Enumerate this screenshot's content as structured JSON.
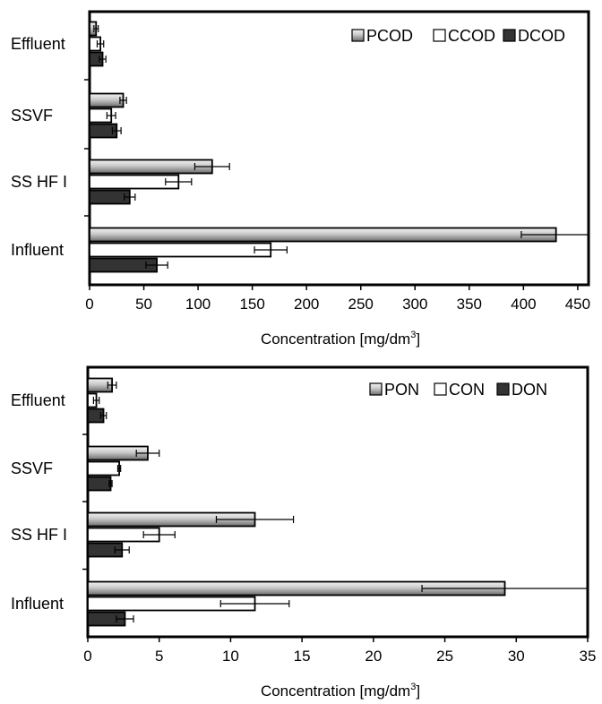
{
  "chart_data": [
    {
      "type": "bar",
      "orientation": "horizontal",
      "categories": [
        "Effluent",
        "SSVF",
        "SS HF I",
        "Influent"
      ],
      "series": [
        {
          "name": "PCOD",
          "values": [
            6,
            31,
            113,
            430
          ],
          "errors": [
            2,
            3,
            16,
            32
          ]
        },
        {
          "name": "CCOD",
          "values": [
            10,
            20,
            82,
            167
          ],
          "errors": [
            3,
            4,
            12,
            15
          ]
        },
        {
          "name": "DCOD",
          "values": [
            12,
            25,
            37,
            62
          ],
          "errors": [
            3,
            4,
            5,
            10
          ]
        }
      ],
      "xlabel": "Concentration [mg/dm",
      "xlabel_superscript": "3",
      "xlabel_suffix": "]",
      "xlim": [
        0,
        460
      ],
      "xticks": [
        0,
        50,
        100,
        150,
        200,
        250,
        300,
        350,
        400,
        450
      ],
      "grid": false,
      "legend_position": "top-right",
      "colors": {
        "PCOD": "gradient-gray",
        "CCOD": "#ffffff",
        "DCOD": "#333333"
      }
    },
    {
      "type": "bar",
      "orientation": "horizontal",
      "categories": [
        "Effluent",
        "SSVF",
        "SS HF I",
        "Influent"
      ],
      "series": [
        {
          "name": "PON",
          "values": [
            1.7,
            4.2,
            11.7,
            29.2
          ],
          "errors": [
            0.3,
            0.8,
            2.7,
            5.8
          ]
        },
        {
          "name": "CON",
          "values": [
            0.6,
            2.2,
            5.0,
            11.7
          ],
          "errors": [
            0.2,
            0.1,
            1.1,
            2.4
          ]
        },
        {
          "name": "DON",
          "values": [
            1.1,
            1.6,
            2.4,
            2.6
          ],
          "errors": [
            0.2,
            0.1,
            0.5,
            0.6
          ]
        }
      ],
      "xlabel": "Concentration [mg/dm",
      "xlabel_superscript": "3",
      "xlabel_suffix": "]",
      "xlim": [
        0,
        35
      ],
      "xticks": [
        0,
        5,
        10,
        15,
        20,
        25,
        30,
        35
      ],
      "grid": false,
      "legend_position": "top-right",
      "colors": {
        "PON": "gradient-gray",
        "CON": "#ffffff",
        "DON": "#333333"
      }
    }
  ]
}
